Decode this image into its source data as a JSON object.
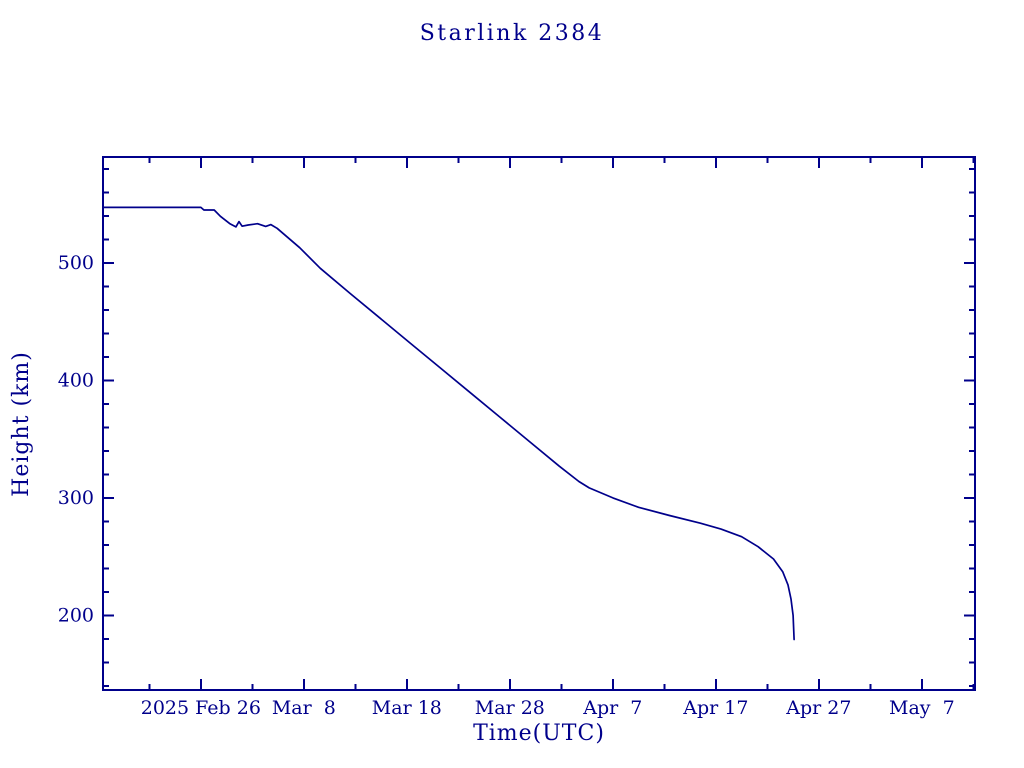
{
  "page": {
    "background": "#ffffff"
  },
  "chart_data": {
    "type": "line",
    "title": "Starlink 2384",
    "xlabel": "Time(UTC)",
    "ylabel": "Height (km)",
    "ink_color": "#00008B",
    "line_color": "#00008B",
    "legend": "none",
    "grid": "off",
    "x_axis": {
      "unit": "days since 2025 Feb 16.5 UTC",
      "range_days": [
        0,
        84.66
      ],
      "major_ticks": [
        {
          "day": 9.5,
          "label": "2025 Feb 26"
        },
        {
          "day": 19.5,
          "label": "Mar  8"
        },
        {
          "day": 29.5,
          "label": "Mar 18"
        },
        {
          "day": 39.5,
          "label": "Mar 28"
        },
        {
          "day": 49.5,
          "label": "Apr  7"
        },
        {
          "day": 59.5,
          "label": "Apr 17"
        },
        {
          "day": 69.5,
          "label": "Apr 27"
        },
        {
          "day": 79.5,
          "label": "May  7"
        }
      ],
      "minor_ticks_days": [
        4.5,
        14.5,
        24.5,
        34.5,
        44.5,
        54.5,
        64.5,
        74.5,
        84.5
      ]
    },
    "y_axis": {
      "unit": "km",
      "range_km": [
        136.5,
        590.2
      ],
      "major_ticks_km": [
        200,
        300,
        400,
        500
      ],
      "minor_tick_step_km": 20,
      "minor_tick_min_km": 140,
      "minor_tick_max_km": 580
    },
    "series": [
      {
        "name": "height",
        "points_day_km": [
          [
            0.0,
            547.3
          ],
          [
            9.5,
            547.3
          ],
          [
            9.8,
            545.1
          ],
          [
            10.8,
            545.1
          ],
          [
            11.4,
            539.7
          ],
          [
            12.3,
            533.5
          ],
          [
            12.9,
            530.7
          ],
          [
            13.2,
            535.2
          ],
          [
            13.5,
            531.3
          ],
          [
            14.1,
            532.3
          ],
          [
            15.0,
            533.4
          ],
          [
            15.8,
            531.1
          ],
          [
            16.3,
            532.7
          ],
          [
            16.9,
            529.5
          ],
          [
            19.1,
            513.0
          ],
          [
            21.1,
            495.5
          ],
          [
            24.0,
            474.0
          ],
          [
            26.9,
            453.0
          ],
          [
            29.8,
            432.0
          ],
          [
            32.7,
            411.0
          ],
          [
            35.6,
            390.0
          ],
          [
            38.5,
            369.0
          ],
          [
            41.4,
            348.0
          ],
          [
            44.3,
            327.0
          ],
          [
            46.2,
            314.0
          ],
          [
            47.2,
            308.5
          ],
          [
            49.5,
            300.0
          ],
          [
            52.0,
            292.0
          ],
          [
            55.0,
            285.0
          ],
          [
            58.0,
            278.5
          ],
          [
            60.0,
            273.5
          ],
          [
            62.0,
            267.0
          ],
          [
            63.6,
            258.5
          ],
          [
            65.1,
            248.0
          ],
          [
            66.0,
            237.0
          ],
          [
            66.5,
            226.0
          ],
          [
            66.8,
            214.0
          ],
          [
            67.0,
            200.0
          ],
          [
            67.1,
            179.5
          ]
        ]
      }
    ]
  }
}
